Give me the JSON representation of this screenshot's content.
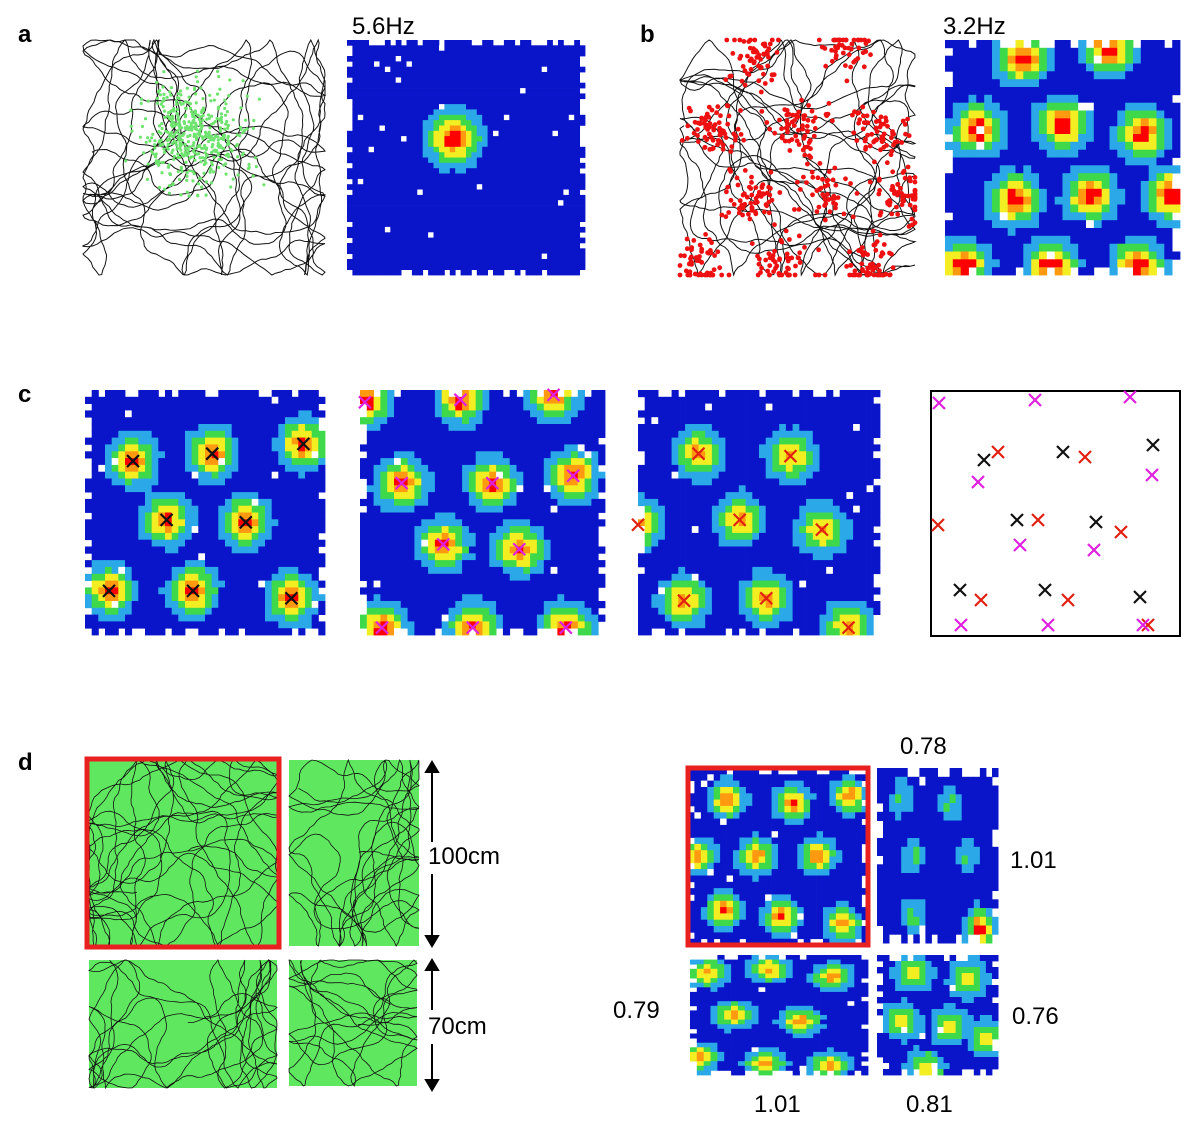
{
  "panels": {
    "a": {
      "label": "a",
      "rate": "5.6Hz"
    },
    "b": {
      "label": "b",
      "rate": "3.2Hz"
    },
    "c": {
      "label": "c"
    },
    "d": {
      "label": "d",
      "scale_top": "100cm",
      "scale_bottom": "70cm",
      "scores": {
        "top": 0.78,
        "right_top": 1.01,
        "left_bottom": 0.79,
        "right_bottom": 0.76,
        "bottom_left": 1.01,
        "bottom_right": 0.81
      }
    }
  }
}
